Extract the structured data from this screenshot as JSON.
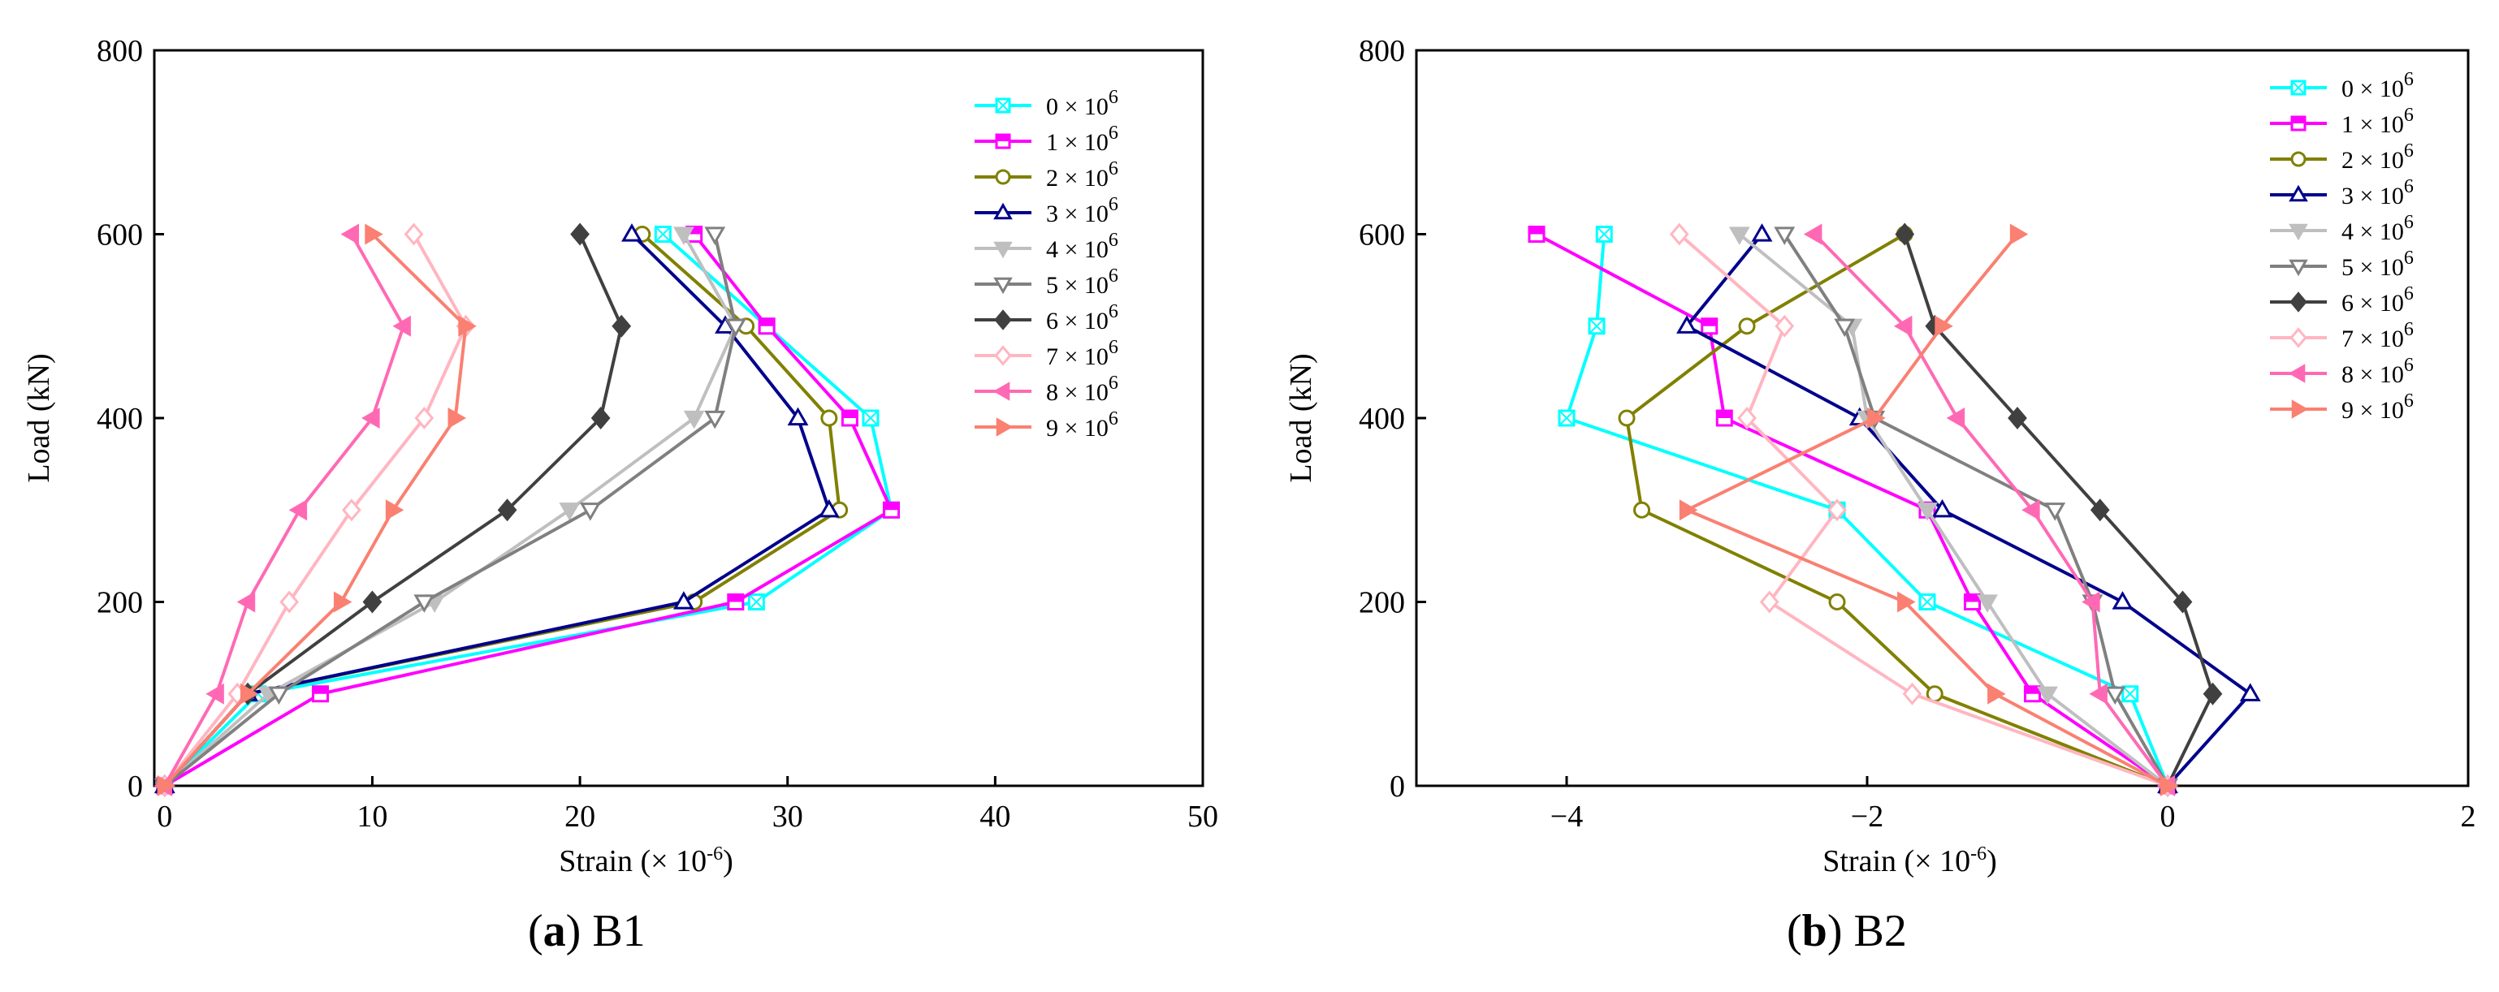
{
  "figure": {
    "panels": [
      {
        "caption_letter": "a",
        "caption_name": "B1"
      },
      {
        "caption_letter": "b",
        "caption_name": "B2"
      }
    ]
  },
  "chart_data": [
    {
      "type": "line",
      "title": "B1",
      "xlabel": "Strain (× 10⁻⁶)",
      "ylabel": "Load  (kN)",
      "xlim": [
        -0.5,
        50
      ],
      "ylim": [
        0,
        800
      ],
      "xticks": [
        0,
        10,
        20,
        30,
        40,
        50
      ],
      "yticks": [
        0,
        200,
        400,
        600,
        800
      ],
      "grid": false,
      "legend_position": "top-right",
      "y": [
        0,
        100,
        200,
        300,
        400,
        500,
        600
      ],
      "series": [
        {
          "name": "0 × 10⁶",
          "color": "#00FFFF",
          "marker": "square-x",
          "values": [
            0,
            4.5,
            28.5,
            35,
            34,
            29,
            24
          ]
        },
        {
          "name": "1 × 10⁶",
          "color": "#FF00FF",
          "marker": "square-half",
          "values": [
            0,
            7.5,
            27.5,
            35,
            33,
            29,
            25.5
          ]
        },
        {
          "name": "2 × 10⁶",
          "color": "#808000",
          "marker": "circle-open",
          "values": [
            0,
            4,
            25.5,
            32.5,
            32,
            28,
            23
          ]
        },
        {
          "name": "3 × 10⁶",
          "color": "#00008B",
          "marker": "triangle-up-open",
          "values": [
            0,
            4,
            25,
            32,
            30.5,
            27,
            22.5
          ]
        },
        {
          "name": "4 × 10⁶",
          "color": "#BFBFBF",
          "marker": "triangle-down-filled",
          "values": [
            0,
            5,
            13,
            19.5,
            25.5,
            27.5,
            25
          ]
        },
        {
          "name": "5 × 10⁶",
          "color": "#808080",
          "marker": "triangle-down-open",
          "values": [
            0,
            5.5,
            12.5,
            20.5,
            26.5,
            27.5,
            26.5
          ]
        },
        {
          "name": "6 × 10⁶",
          "color": "#404040",
          "marker": "diamond-filled",
          "values": [
            0,
            4,
            10,
            16.5,
            21,
            22,
            20
          ]
        },
        {
          "name": "7 × 10⁶",
          "color": "#FFB6C1",
          "marker": "diamond-open",
          "values": [
            0,
            3.5,
            6,
            9,
            12.5,
            14.5,
            12
          ]
        },
        {
          "name": "8 × 10⁶",
          "color": "#FF69B4",
          "marker": "triangle-left-filled",
          "values": [
            0,
            2.5,
            4,
            6.5,
            10,
            11.5,
            9
          ]
        },
        {
          "name": "9 × 10⁶",
          "color": "#FA8072",
          "marker": "triangle-right-filled",
          "values": [
            0,
            4,
            8.5,
            11,
            14,
            14.5,
            10
          ]
        }
      ]
    },
    {
      "type": "line",
      "title": "B2",
      "xlabel": "Strain (× 10⁻⁶)",
      "ylabel": "Load  (kN)",
      "xlim": [
        -5,
        2
      ],
      "ylim": [
        0,
        800
      ],
      "xticks": [
        -4,
        -2,
        0,
        2
      ],
      "yticks": [
        0,
        200,
        400,
        600,
        800
      ],
      "grid": false,
      "legend_position": "top-right",
      "y": [
        0,
        100,
        200,
        300,
        400,
        500,
        600
      ],
      "series": [
        {
          "name": "0 × 10⁶",
          "color": "#00FFFF",
          "marker": "square-x",
          "values": [
            0,
            -0.25,
            -1.6,
            -2.2,
            -4,
            -3.8,
            -3.75
          ]
        },
        {
          "name": "1 × 10⁶",
          "color": "#FF00FF",
          "marker": "square-half",
          "values": [
            0,
            -0.9,
            -1.3,
            -1.6,
            -2.95,
            -3.05,
            -4.2
          ]
        },
        {
          "name": "2 × 10⁶",
          "color": "#808000",
          "marker": "circle-open",
          "values": [
            0,
            -1.55,
            -2.2,
            -3.5,
            -3.6,
            -2.8,
            -1.75
          ]
        },
        {
          "name": "3 × 10⁶",
          "color": "#00008B",
          "marker": "triangle-up-open",
          "values": [
            0,
            0.55,
            -0.3,
            -1.5,
            -2.05,
            -3.2,
            -2.7
          ]
        },
        {
          "name": "4 × 10⁶",
          "color": "#BFBFBF",
          "marker": "triangle-down-filled",
          "values": [
            0,
            -0.8,
            -1.2,
            -1.6,
            -2.0,
            -2.1,
            -2.85
          ]
        },
        {
          "name": "5 × 10⁶",
          "color": "#808080",
          "marker": "triangle-down-open",
          "values": [
            0,
            -0.35,
            -0.5,
            -0.75,
            -1.95,
            -2.15,
            -2.55
          ]
        },
        {
          "name": "6 × 10⁶",
          "color": "#404040",
          "marker": "diamond-filled",
          "values": [
            0,
            0.3,
            0.1,
            -0.45,
            -1.0,
            -1.55,
            -1.75
          ]
        },
        {
          "name": "7 × 10⁶",
          "color": "#FFB6C1",
          "marker": "diamond-open",
          "values": [
            0,
            -1.7,
            -2.65,
            -2.2,
            -2.8,
            -2.55,
            -3.25
          ]
        },
        {
          "name": "8 × 10⁶",
          "color": "#FF69B4",
          "marker": "triangle-left-filled",
          "values": [
            0,
            -0.45,
            -0.5,
            -0.9,
            -1.4,
            -1.75,
            -2.35
          ]
        },
        {
          "name": "9 × 10⁶",
          "color": "#FA8072",
          "marker": "triangle-right-filled",
          "values": [
            0,
            -1.15,
            -1.75,
            -3.2,
            -1.95,
            -1.5,
            -1.0
          ]
        }
      ]
    }
  ]
}
